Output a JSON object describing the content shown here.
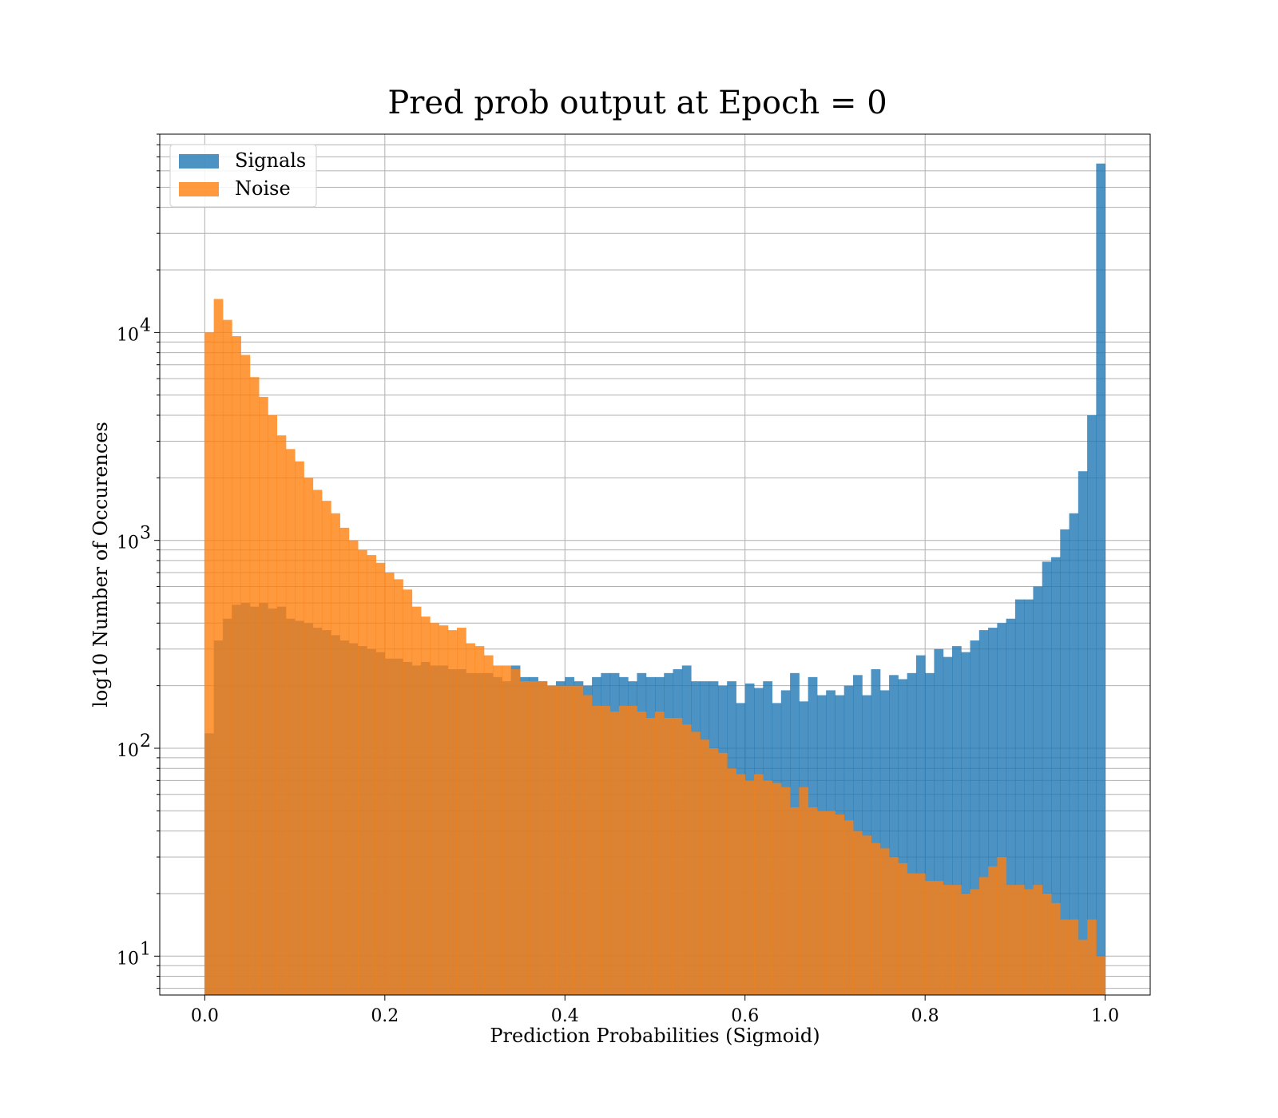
{
  "chart_data": {
    "type": "bar",
    "title": "Pred prob output at Epoch = 0",
    "xlabel": "Prediction Probabilities (Sigmoid)",
    "ylabel": "log10 Number of Occurences",
    "xlim": [
      -0.05,
      1.05
    ],
    "ylim": [
      6.5,
      90000
    ],
    "yscale": "log",
    "bins": 100,
    "bin_range": [
      0,
      1
    ],
    "grid": true,
    "legend_position": "top-left",
    "xticks": [
      "0.0",
      "0.2",
      "0.4",
      "0.6",
      "0.8",
      "1.0"
    ],
    "yticks": [
      {
        "base": "10",
        "exp": "1"
      },
      {
        "base": "10",
        "exp": "2"
      },
      {
        "base": "10",
        "exp": "3"
      },
      {
        "base": "10",
        "exp": "4"
      }
    ],
    "series": [
      {
        "name": "Signals",
        "color": "#1f77b4",
        "values": [
          118,
          330,
          420,
          490,
          500,
          480,
          500,
          470,
          480,
          420,
          410,
          400,
          380,
          370,
          350,
          330,
          320,
          310,
          300,
          290,
          270,
          270,
          260,
          250,
          260,
          250,
          250,
          240,
          240,
          230,
          230,
          230,
          220,
          210,
          250,
          220,
          220,
          210,
          200,
          210,
          220,
          210,
          200,
          220,
          230,
          230,
          220,
          210,
          230,
          220,
          220,
          230,
          240,
          250,
          210,
          210,
          210,
          200,
          210,
          165,
          205,
          195,
          210,
          165,
          190,
          230,
          168,
          220,
          180,
          190,
          180,
          200,
          225,
          180,
          240,
          190,
          225,
          215,
          230,
          280,
          230,
          300,
          275,
          310,
          290,
          330,
          370,
          380,
          400,
          420,
          520,
          520,
          600,
          790,
          830,
          1130,
          1350,
          2150,
          4000,
          65000
        ]
      },
      {
        "name": "Noise",
        "color": "#ff7f0e",
        "values": [
          10000,
          14500,
          11500,
          9600,
          7800,
          6100,
          4900,
          4000,
          3200,
          2750,
          2400,
          2000,
          1750,
          1550,
          1350,
          1150,
          1000,
          900,
          850,
          780,
          700,
          650,
          580,
          480,
          430,
          400,
          390,
          370,
          380,
          320,
          310,
          280,
          250,
          250,
          240,
          210,
          210,
          210,
          200,
          200,
          200,
          200,
          180,
          160,
          160,
          150,
          160,
          160,
          150,
          140,
          150,
          140,
          140,
          130,
          120,
          110,
          100,
          95,
          80,
          75,
          70,
          75,
          70,
          68,
          65,
          52,
          65,
          52,
          50,
          50,
          48,
          45,
          40,
          38,
          35,
          33,
          30,
          28,
          25,
          25,
          23,
          23,
          22,
          22,
          20,
          21,
          24,
          27,
          30,
          22,
          22,
          21,
          22,
          20,
          18,
          15,
          15,
          12,
          15,
          10
        ]
      }
    ]
  }
}
